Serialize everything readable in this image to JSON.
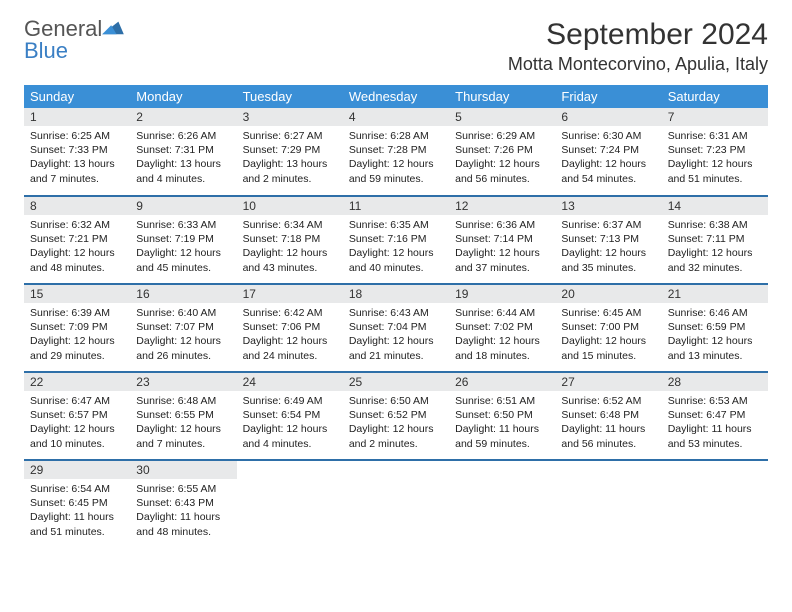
{
  "brand": {
    "name_part1": "General",
    "name_part2": "Blue"
  },
  "title": "September 2024",
  "location": "Motta Montecorvino, Apulia, Italy",
  "theme": {
    "header_bg": "#3a8fd6",
    "header_text": "#ffffff",
    "row_divider": "#2e6fa8",
    "daynum_bg": "#e8e9ea",
    "body_bg": "#ffffff",
    "text": "#222222",
    "logo_gray": "#555555",
    "logo_blue": "#3a7fc4"
  },
  "weekdays": [
    "Sunday",
    "Monday",
    "Tuesday",
    "Wednesday",
    "Thursday",
    "Friday",
    "Saturday"
  ],
  "weeks": [
    [
      {
        "n": "1",
        "sr": "6:25 AM",
        "ss": "7:33 PM",
        "dl": "13 hours and 7 minutes."
      },
      {
        "n": "2",
        "sr": "6:26 AM",
        "ss": "7:31 PM",
        "dl": "13 hours and 4 minutes."
      },
      {
        "n": "3",
        "sr": "6:27 AM",
        "ss": "7:29 PM",
        "dl": "13 hours and 2 minutes."
      },
      {
        "n": "4",
        "sr": "6:28 AM",
        "ss": "7:28 PM",
        "dl": "12 hours and 59 minutes."
      },
      {
        "n": "5",
        "sr": "6:29 AM",
        "ss": "7:26 PM",
        "dl": "12 hours and 56 minutes."
      },
      {
        "n": "6",
        "sr": "6:30 AM",
        "ss": "7:24 PM",
        "dl": "12 hours and 54 minutes."
      },
      {
        "n": "7",
        "sr": "6:31 AM",
        "ss": "7:23 PM",
        "dl": "12 hours and 51 minutes."
      }
    ],
    [
      {
        "n": "8",
        "sr": "6:32 AM",
        "ss": "7:21 PM",
        "dl": "12 hours and 48 minutes."
      },
      {
        "n": "9",
        "sr": "6:33 AM",
        "ss": "7:19 PM",
        "dl": "12 hours and 45 minutes."
      },
      {
        "n": "10",
        "sr": "6:34 AM",
        "ss": "7:18 PM",
        "dl": "12 hours and 43 minutes."
      },
      {
        "n": "11",
        "sr": "6:35 AM",
        "ss": "7:16 PM",
        "dl": "12 hours and 40 minutes."
      },
      {
        "n": "12",
        "sr": "6:36 AM",
        "ss": "7:14 PM",
        "dl": "12 hours and 37 minutes."
      },
      {
        "n": "13",
        "sr": "6:37 AM",
        "ss": "7:13 PM",
        "dl": "12 hours and 35 minutes."
      },
      {
        "n": "14",
        "sr": "6:38 AM",
        "ss": "7:11 PM",
        "dl": "12 hours and 32 minutes."
      }
    ],
    [
      {
        "n": "15",
        "sr": "6:39 AM",
        "ss": "7:09 PM",
        "dl": "12 hours and 29 minutes."
      },
      {
        "n": "16",
        "sr": "6:40 AM",
        "ss": "7:07 PM",
        "dl": "12 hours and 26 minutes."
      },
      {
        "n": "17",
        "sr": "6:42 AM",
        "ss": "7:06 PM",
        "dl": "12 hours and 24 minutes."
      },
      {
        "n": "18",
        "sr": "6:43 AM",
        "ss": "7:04 PM",
        "dl": "12 hours and 21 minutes."
      },
      {
        "n": "19",
        "sr": "6:44 AM",
        "ss": "7:02 PM",
        "dl": "12 hours and 18 minutes."
      },
      {
        "n": "20",
        "sr": "6:45 AM",
        "ss": "7:00 PM",
        "dl": "12 hours and 15 minutes."
      },
      {
        "n": "21",
        "sr": "6:46 AM",
        "ss": "6:59 PM",
        "dl": "12 hours and 13 minutes."
      }
    ],
    [
      {
        "n": "22",
        "sr": "6:47 AM",
        "ss": "6:57 PM",
        "dl": "12 hours and 10 minutes."
      },
      {
        "n": "23",
        "sr": "6:48 AM",
        "ss": "6:55 PM",
        "dl": "12 hours and 7 minutes."
      },
      {
        "n": "24",
        "sr": "6:49 AM",
        "ss": "6:54 PM",
        "dl": "12 hours and 4 minutes."
      },
      {
        "n": "25",
        "sr": "6:50 AM",
        "ss": "6:52 PM",
        "dl": "12 hours and 2 minutes."
      },
      {
        "n": "26",
        "sr": "6:51 AM",
        "ss": "6:50 PM",
        "dl": "11 hours and 59 minutes."
      },
      {
        "n": "27",
        "sr": "6:52 AM",
        "ss": "6:48 PM",
        "dl": "11 hours and 56 minutes."
      },
      {
        "n": "28",
        "sr": "6:53 AM",
        "ss": "6:47 PM",
        "dl": "11 hours and 53 minutes."
      }
    ],
    [
      {
        "n": "29",
        "sr": "6:54 AM",
        "ss": "6:45 PM",
        "dl": "11 hours and 51 minutes."
      },
      {
        "n": "30",
        "sr": "6:55 AM",
        "ss": "6:43 PM",
        "dl": "11 hours and 48 minutes."
      },
      null,
      null,
      null,
      null,
      null
    ]
  ],
  "labels": {
    "sunrise": "Sunrise:",
    "sunset": "Sunset:",
    "daylight": "Daylight:"
  }
}
